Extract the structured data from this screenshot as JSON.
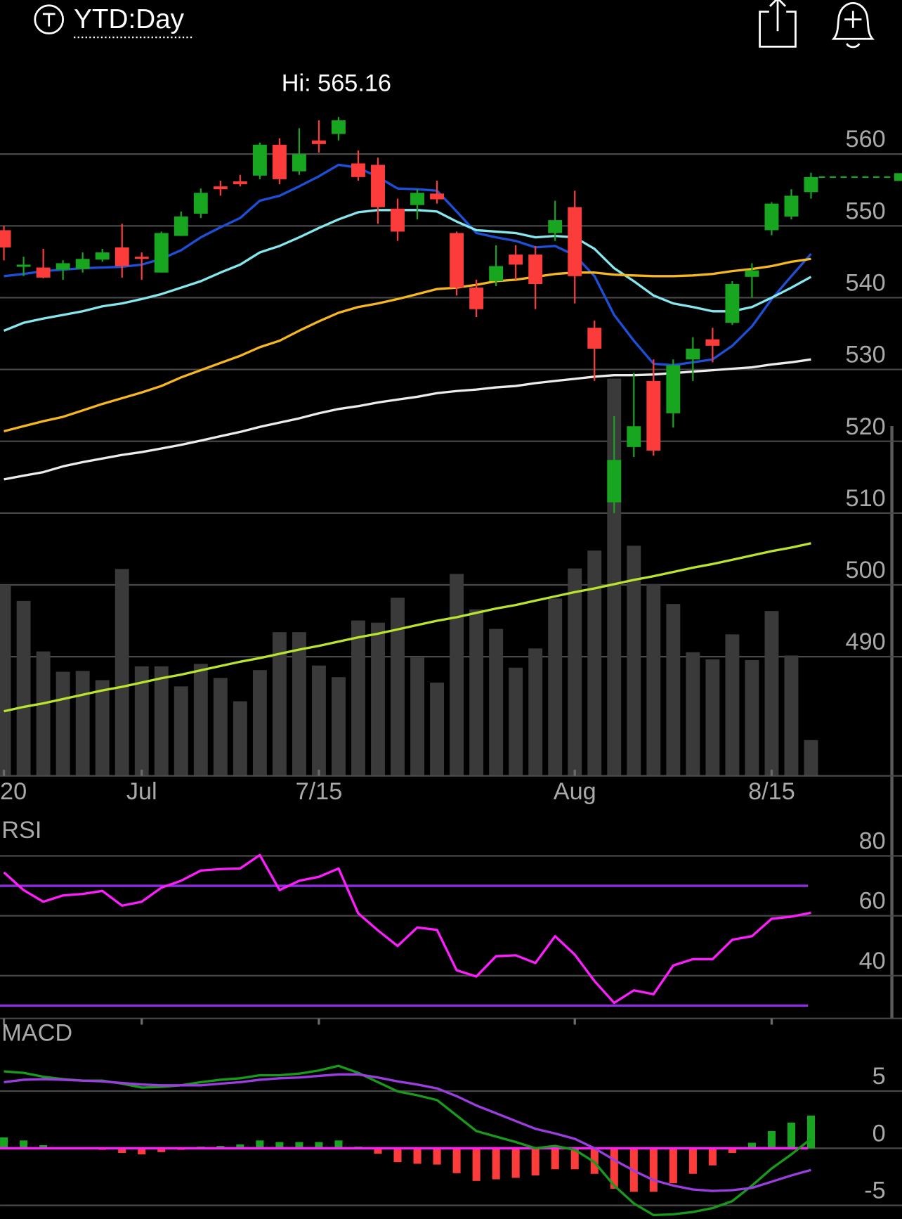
{
  "header": {
    "title": "YTD:Day"
  },
  "chart_data": [
    {
      "type": "candlestick",
      "annotation": "Hi: 565.16",
      "categories": [
        "20",
        null,
        null,
        null,
        null,
        null,
        null,
        "Jul",
        null,
        null,
        null,
        null,
        null,
        null,
        null,
        null,
        "7/15",
        null,
        null,
        null,
        null,
        null,
        null,
        null,
        null,
        null,
        null,
        null,
        null,
        "Aug",
        null,
        null,
        null,
        null,
        null,
        null,
        null,
        null,
        null,
        "8/15",
        null,
        null
      ],
      "open": [
        549.4,
        544.3,
        544.2,
        543.9,
        544.0,
        545.3,
        547.0,
        545.7,
        543.5,
        548.6,
        551.7,
        555.5,
        556.2,
        557.0,
        561.3,
        557.6,
        561.9,
        562.8,
        558.7,
        558.5,
        552.4,
        552.9,
        554.5,
        549.0,
        541.4,
        542.3,
        546.0,
        546.0,
        549.0,
        552.6,
        535.8,
        511.5,
        519.2,
        528.4,
        523.9,
        531.4,
        534.2,
        536.5,
        542.9,
        549.4,
        551.3,
        554.7
      ],
      "high": [
        550.0,
        545.7,
        546.8,
        545.2,
        546.3,
        546.8,
        550.3,
        546.3,
        549.2,
        552.0,
        555.2,
        556.3,
        557.1,
        561.6,
        562.2,
        563.6,
        564.7,
        565.16,
        560.5,
        559.5,
        553.8,
        555.1,
        556.3,
        549.2,
        542.5,
        547.3,
        547.3,
        547.2,
        553.5,
        554.9,
        536.8,
        523.5,
        529.5,
        531.4,
        531.4,
        534.5,
        535.8,
        542.3,
        544.8,
        553.3,
        555.1,
        557.4
      ],
      "low": [
        545.2,
        543.0,
        542.7,
        542.5,
        543.5,
        545.0,
        542.8,
        542.5,
        543.5,
        548.6,
        551.1,
        554.2,
        555.5,
        556.5,
        555.8,
        557.1,
        560.2,
        561.9,
        556.3,
        550.3,
        547.9,
        550.9,
        553.1,
        540.3,
        537.3,
        541.6,
        542.5,
        538.4,
        547.9,
        539.2,
        528.4,
        510.0,
        517.8,
        518.0,
        521.9,
        528.4,
        531.0,
        536.2,
        540.0,
        548.7,
        550.9,
        553.8
      ],
      "close": [
        547.0,
        544.6,
        542.8,
        544.8,
        545.4,
        546.3,
        544.4,
        545.4,
        549.0,
        551.3,
        554.6,
        555.1,
        555.8,
        561.3,
        556.5,
        560.0,
        561.4,
        564.7,
        556.8,
        552.6,
        549.2,
        554.6,
        553.7,
        541.4,
        538.4,
        544.4,
        544.6,
        541.9,
        550.8,
        543.0,
        532.9,
        517.4,
        522.1,
        518.7,
        530.6,
        532.9,
        533.3,
        541.9,
        543.8,
        553.1,
        554.2,
        556.8
      ],
      "volume": [
        70.5,
        64.5,
        45.9,
        38.4,
        38.7,
        35.3,
        76.3,
        40.4,
        40.4,
        33.0,
        41.3,
        36.1,
        27.5,
        39.0,
        53.0,
        53.0,
        40.7,
        36.4,
        57.3,
        56.5,
        65.7,
        43.6,
        34.4,
        74.5,
        61.4,
        54.2,
        39.9,
        47.0,
        65.4,
        76.5,
        83.1,
        146.5,
        84.9,
        70.8,
        63.4,
        45.6,
        43.0,
        52.2,
        42.7,
        60.8,
        44.4,
        13.2
      ],
      "volume_ylim": [
        0,
        160
      ],
      "volume_color": "#3a3a3a",
      "up_color": "#18a51f",
      "down_color": "#fc3b3b",
      "ylim": [
        473.4,
        566.3
      ],
      "yticks": [
        490,
        500,
        510,
        520,
        530,
        540,
        550,
        560
      ],
      "grid": true,
      "series": [
        {
          "color": "#1e4fd8",
          "values": [
            543.0,
            543.3,
            543.7,
            543.9,
            544.1,
            544.2,
            544.3,
            544.6,
            545.4,
            546.6,
            548.4,
            549.8,
            551.1,
            553.5,
            554.2,
            555.5,
            556.9,
            558.5,
            558.1,
            556.8,
            555.2,
            555.1,
            554.9,
            552.0,
            549.0,
            548.4,
            547.9,
            547.0,
            547.2,
            545.9,
            543.0,
            537.6,
            534.0,
            530.8,
            530.6,
            531.0,
            531.4,
            533.3,
            536.0,
            539.8,
            543.0,
            546.1
          ]
        },
        {
          "color": "#86e8ee",
          "values": [
            535.4,
            536.5,
            537.1,
            537.6,
            538.1,
            538.8,
            539.2,
            539.8,
            540.5,
            541.4,
            542.3,
            543.5,
            544.6,
            546.3,
            547.2,
            548.4,
            549.7,
            550.9,
            551.9,
            552.2,
            552.2,
            552.2,
            552.0,
            550.6,
            549.4,
            549.2,
            549.0,
            548.4,
            548.6,
            548.4,
            546.8,
            544.1,
            542.3,
            540.3,
            539.2,
            538.7,
            538.1,
            538.1,
            538.7,
            540.0,
            541.4,
            542.9
          ]
        },
        {
          "color": "#f6b81e",
          "values": [
            521.4,
            522.1,
            522.8,
            523.4,
            524.3,
            525.2,
            526.0,
            526.8,
            527.7,
            528.9,
            529.9,
            530.9,
            531.9,
            533.1,
            534.0,
            535.4,
            536.7,
            537.9,
            538.7,
            539.2,
            539.8,
            540.5,
            541.2,
            541.4,
            541.8,
            542.3,
            542.5,
            542.9,
            543.3,
            543.5,
            543.5,
            543.2,
            543.1,
            543.0,
            543.0,
            543.1,
            543.3,
            543.7,
            544.0,
            544.4,
            545.0,
            545.4
          ]
        },
        {
          "color": "#ececec",
          "values": [
            514.7,
            515.2,
            515.7,
            516.5,
            517.1,
            517.6,
            518.1,
            518.5,
            519.0,
            519.5,
            520.1,
            520.7,
            521.3,
            522.0,
            522.6,
            523.2,
            523.9,
            524.5,
            524.9,
            525.4,
            525.8,
            526.2,
            526.7,
            527.0,
            527.2,
            527.5,
            527.7,
            528.1,
            528.4,
            528.7,
            529.0,
            529.2,
            529.2,
            529.3,
            529.5,
            529.7,
            529.9,
            530.1,
            530.3,
            530.7,
            531.0,
            531.4
          ]
        },
        {
          "color": "#b9e52c",
          "values": [
            482.4,
            483.0,
            483.5,
            484.1,
            484.7,
            485.3,
            485.8,
            486.4,
            487.0,
            487.5,
            488.1,
            488.7,
            489.3,
            489.8,
            490.4,
            491.0,
            491.5,
            492.1,
            492.7,
            493.2,
            493.8,
            494.4,
            495.0,
            495.5,
            496.1,
            496.7,
            497.2,
            497.8,
            498.4,
            499.0,
            499.5,
            500.1,
            500.7,
            501.2,
            501.8,
            502.4,
            502.9,
            503.5,
            504.1,
            504.7,
            505.2,
            505.8
          ]
        }
      ]
    },
    {
      "type": "line",
      "title": "RSI",
      "ylim": [
        25,
        87
      ],
      "yticks": [
        40,
        60,
        80
      ],
      "grid": true,
      "levels": [
        70,
        30
      ],
      "level_color": "#8e2ee0",
      "series": [
        {
          "color": "#ff1cff",
          "values": [
            74.5,
            68.6,
            64.7,
            66.8,
            67.3,
            68.3,
            63.4,
            64.7,
            69.4,
            71.7,
            75.1,
            75.6,
            75.8,
            80.3,
            68.6,
            71.7,
            73.0,
            75.8,
            60.8,
            55.1,
            49.9,
            56.1,
            55.3,
            41.8,
            39.7,
            46.5,
            46.8,
            44.2,
            53.2,
            47.0,
            38.2,
            30.9,
            35.1,
            33.8,
            43.4,
            45.5,
            45.5,
            52.0,
            53.2,
            59.0,
            59.7,
            61.0
          ]
        }
      ]
    },
    {
      "type": "macd",
      "title": "MACD",
      "ylim": [
        -6.2,
        9.0
      ],
      "yticks": [
        -5,
        0,
        5
      ],
      "grid": true,
      "zero_line_color": "#ff1cff",
      "up_color": "#18a51f",
      "down_color": "#fc3b3b",
      "histogram": [
        0.95,
        0.68,
        0.27,
        0,
        0,
        -0.14,
        -0.41,
        -0.54,
        -0.34,
        -0.14,
        0.14,
        0.2,
        0.34,
        0.68,
        0.54,
        0.54,
        0.54,
        0.68,
        0.14,
        -0.48,
        -1.22,
        -1.36,
        -1.43,
        -2.18,
        -2.86,
        -2.72,
        -2.59,
        -2.38,
        -1.84,
        -1.84,
        -2.24,
        -3.54,
        -3.81,
        -3.81,
        -3.06,
        -2.24,
        -1.5,
        -0.41,
        0.48,
        1.5,
        2.24,
        2.86
      ],
      "series": [
        {
          "color": "#1a9a1a",
          "values": [
            6.73,
            6.6,
            6.26,
            6.05,
            5.92,
            5.92,
            5.65,
            5.31,
            5.37,
            5.51,
            5.78,
            5.99,
            6.12,
            6.39,
            6.39,
            6.53,
            6.8,
            7.21,
            6.6,
            5.78,
            4.97,
            4.63,
            4.22,
            2.86,
            1.5,
            1.02,
            0.54,
            0,
            0.2,
            -0.14,
            -1.22,
            -3.27,
            -4.83,
            -5.85,
            -5.78,
            -5.58,
            -5.24,
            -4.63,
            -3.27,
            -1.77,
            -0.54,
            0.82
          ]
        },
        {
          "color": "#9b3de0",
          "values": [
            5.78,
            5.99,
            6.05,
            5.99,
            5.92,
            5.85,
            5.71,
            5.58,
            5.51,
            5.51,
            5.51,
            5.65,
            5.78,
            5.99,
            6.12,
            6.19,
            6.33,
            6.46,
            6.46,
            6.19,
            5.85,
            5.58,
            5.24,
            4.56,
            3.74,
            3.06,
            2.38,
            1.7,
            1.29,
            0.82,
            0,
            -1.02,
            -1.97,
            -2.79,
            -3.27,
            -3.61,
            -3.74,
            -3.67,
            -3.47,
            -2.93,
            -2.38,
            -1.9
          ]
        }
      ]
    }
  ]
}
